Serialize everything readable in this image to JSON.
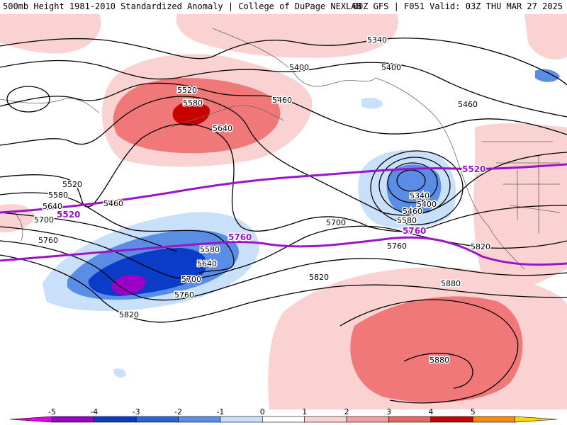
{
  "header": {
    "left_title": "500mb Height 1981-2010 Standardized Anomaly | College of DuPage NEXLAB",
    "right_title": "00Z GFS | F051 Valid: 03Z THU MAR 27 2025"
  },
  "contour_labels": {
    "black": [
      "5340",
      "5400",
      "5400",
      "5460",
      "5460",
      "5520",
      "5580",
      "5640",
      "5520",
      "5580",
      "5640",
      "5700",
      "5760",
      "5460",
      "5580",
      "5640",
      "5700",
      "5760",
      "5820",
      "5700",
      "5580",
      "5340",
      "5400",
      "5460",
      "5760",
      "5820",
      "5820",
      "5880",
      "5880"
    ],
    "purple": [
      "5520",
      "5760",
      "5520",
      "5760"
    ]
  },
  "colorbar": {
    "tick_labels": [
      "-5",
      "-4",
      "-3",
      "-2",
      "-1",
      "0",
      "1",
      "2",
      "3",
      "4",
      "5"
    ],
    "colors": [
      "#e600e6",
      "#9a00c8",
      "#0a3cc8",
      "#2a64dc",
      "#5a8ee6",
      "#c8e0fa",
      "#ffffff",
      "#fad2d2",
      "#f5a0a0",
      "#eb6464",
      "#c80000",
      "#ff8c00",
      "#ffd700"
    ]
  },
  "colors": {
    "anomaly_pos_light": "#fad2d2",
    "anomaly_pos_mid": "#f07878",
    "anomaly_pos_strong": "#c80000",
    "anomaly_neg_light": "#c8e0fa",
    "anomaly_neg_mid": "#5a8ee6",
    "anomaly_neg_strong": "#0a3cc8",
    "anomaly_neg_extreme": "#9a00c8",
    "height_contour": "#000000",
    "highlight_contour": "#9a14c8"
  }
}
